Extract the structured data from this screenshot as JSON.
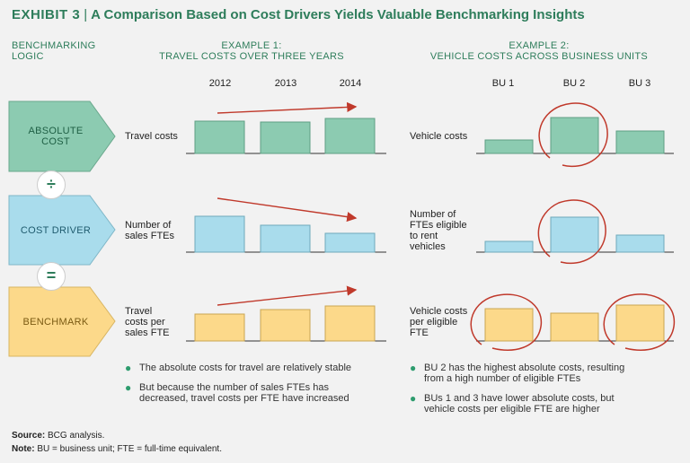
{
  "title": {
    "exhibit": "EXHIBIT 3",
    "separator": "|",
    "text": "A Comparison Based on Cost Drivers Yields Valuable Benchmarking Insights"
  },
  "headers": {
    "logic": [
      "BENCHMARKING",
      "LOGIC"
    ],
    "example1": [
      "EXAMPLE 1:",
      "TRAVEL COSTS OVER THREE YEARS"
    ],
    "example2": [
      "EXAMPLE 2:",
      "VEHICLE COSTS ACROSS BUSINESS UNITS"
    ]
  },
  "example1_columns": [
    "2012",
    "2013",
    "2014"
  ],
  "example2_columns": [
    "BU 1",
    "BU 2",
    "BU 3"
  ],
  "logic_steps": {
    "absolute": [
      "ABSOLUTE",
      "COST"
    ],
    "driver": [
      "COST DRIVER"
    ],
    "benchmark": [
      "BENCHMARK"
    ],
    "divide_op": "÷",
    "equals_op": "="
  },
  "example1_rows": [
    [
      "Travel costs"
    ],
    [
      "Number of",
      "sales FTEs"
    ],
    [
      "Travel",
      "costs per",
      "sales FTE"
    ]
  ],
  "example2_rows": [
    [
      "Vehicle costs"
    ],
    [
      "Number of",
      "FTEs eligible",
      "to rent",
      "vehicles"
    ],
    [
      "Vehicle costs",
      "per eligible",
      "FTE"
    ]
  ],
  "example1_bullets": [
    [
      "The absolute costs for travel are relatively stable"
    ],
    [
      "But because the number of sales FTEs has",
      "decreased, travel costs per FTE have increased"
    ]
  ],
  "example2_bullets": [
    [
      "BU 2 has the highest absolute costs, resulting",
      "from a high number of eligible FTEs"
    ],
    [
      "BUs 1 and 3 have lower absolute costs, but",
      "vehicle costs per eligible FTE are higher"
    ]
  ],
  "footer": {
    "source_label": "Source:",
    "source_text": "BCG analysis.",
    "note_label": "Note:",
    "note_text": "BU = business unit; FTE = full-time equivalent."
  },
  "colors": {
    "green": "#8ccbb1",
    "blue": "#a9dcec",
    "yellow": "#fcd98a",
    "accent": "#2e7d5b",
    "highlight": "#c0392b"
  },
  "chart_data": {
    "type": "bar",
    "example1": {
      "categories": [
        "2012",
        "2013",
        "2014"
      ],
      "series": [
        {
          "name": "Travel costs",
          "values": [
            36,
            35,
            39
          ],
          "trend": "up"
        },
        {
          "name": "Number of sales FTEs",
          "values": [
            40,
            30,
            21
          ],
          "trend": "down"
        },
        {
          "name": "Travel costs per sales FTE",
          "values": [
            30,
            35,
            39
          ],
          "trend": "up"
        }
      ]
    },
    "example2": {
      "categories": [
        "BU 1",
        "BU 2",
        "BU 3"
      ],
      "series": [
        {
          "name": "Vehicle costs",
          "values": [
            15,
            40,
            25
          ],
          "highlight": [
            1
          ]
        },
        {
          "name": "Number of FTEs eligible to rent vehicles",
          "values": [
            12,
            39,
            19
          ],
          "highlight": [
            1
          ]
        },
        {
          "name": "Vehicle costs per eligible FTE",
          "values": [
            36,
            31,
            40
          ],
          "highlight": [
            0,
            2
          ]
        }
      ]
    }
  }
}
